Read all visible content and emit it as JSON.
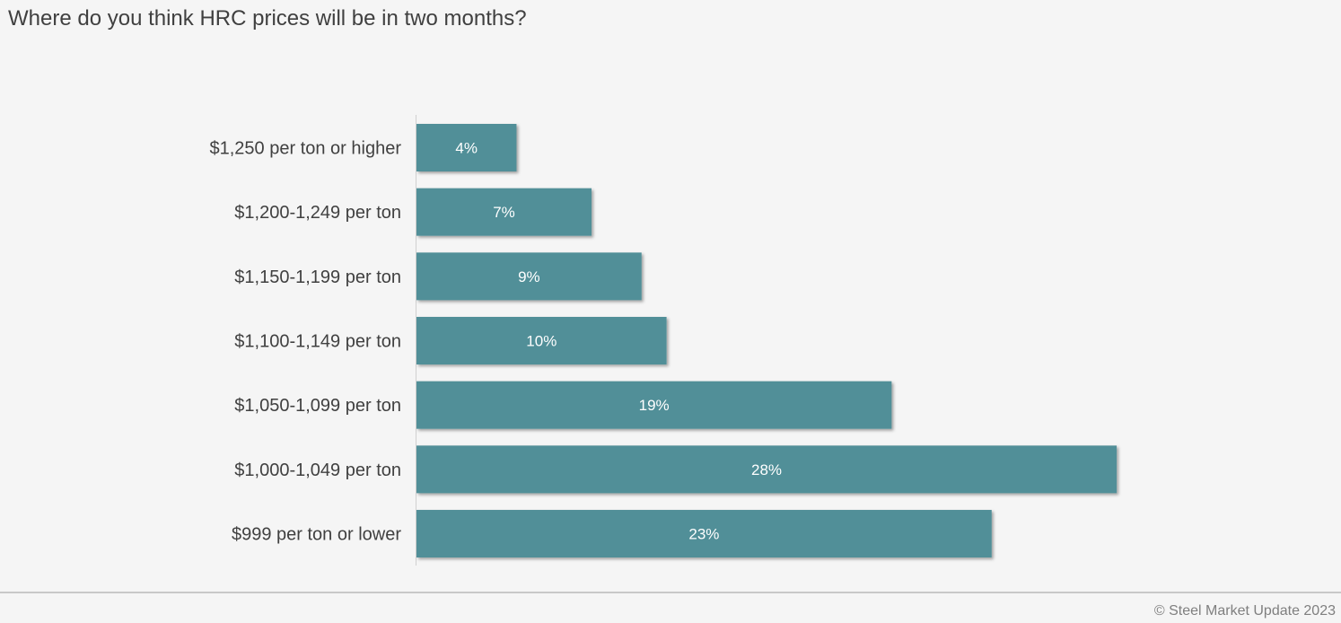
{
  "chart_data": {
    "type": "bar",
    "orientation": "horizontal",
    "title": "Where do you think HRC prices will be in two months?",
    "categories": [
      "$1,250 per ton or higher",
      "$1,200-1,249 per ton",
      "$1,150-1,199 per ton",
      "$1,100-1,149 per ton",
      "$1,050-1,099 per ton",
      "$1,000-1,049 per ton",
      "$999 per ton or lower"
    ],
    "values": [
      4,
      7,
      9,
      10,
      19,
      28,
      23
    ],
    "data_labels": [
      "4%",
      "7%",
      "9%",
      "10%",
      "19%",
      "28%",
      "23%"
    ],
    "value_unit": "%",
    "xlim": [
      0,
      35
    ],
    "grid": false,
    "legend": "none",
    "bar_color": "#518f98"
  },
  "footer": {
    "credit": "© Steel Market Update 2023"
  }
}
